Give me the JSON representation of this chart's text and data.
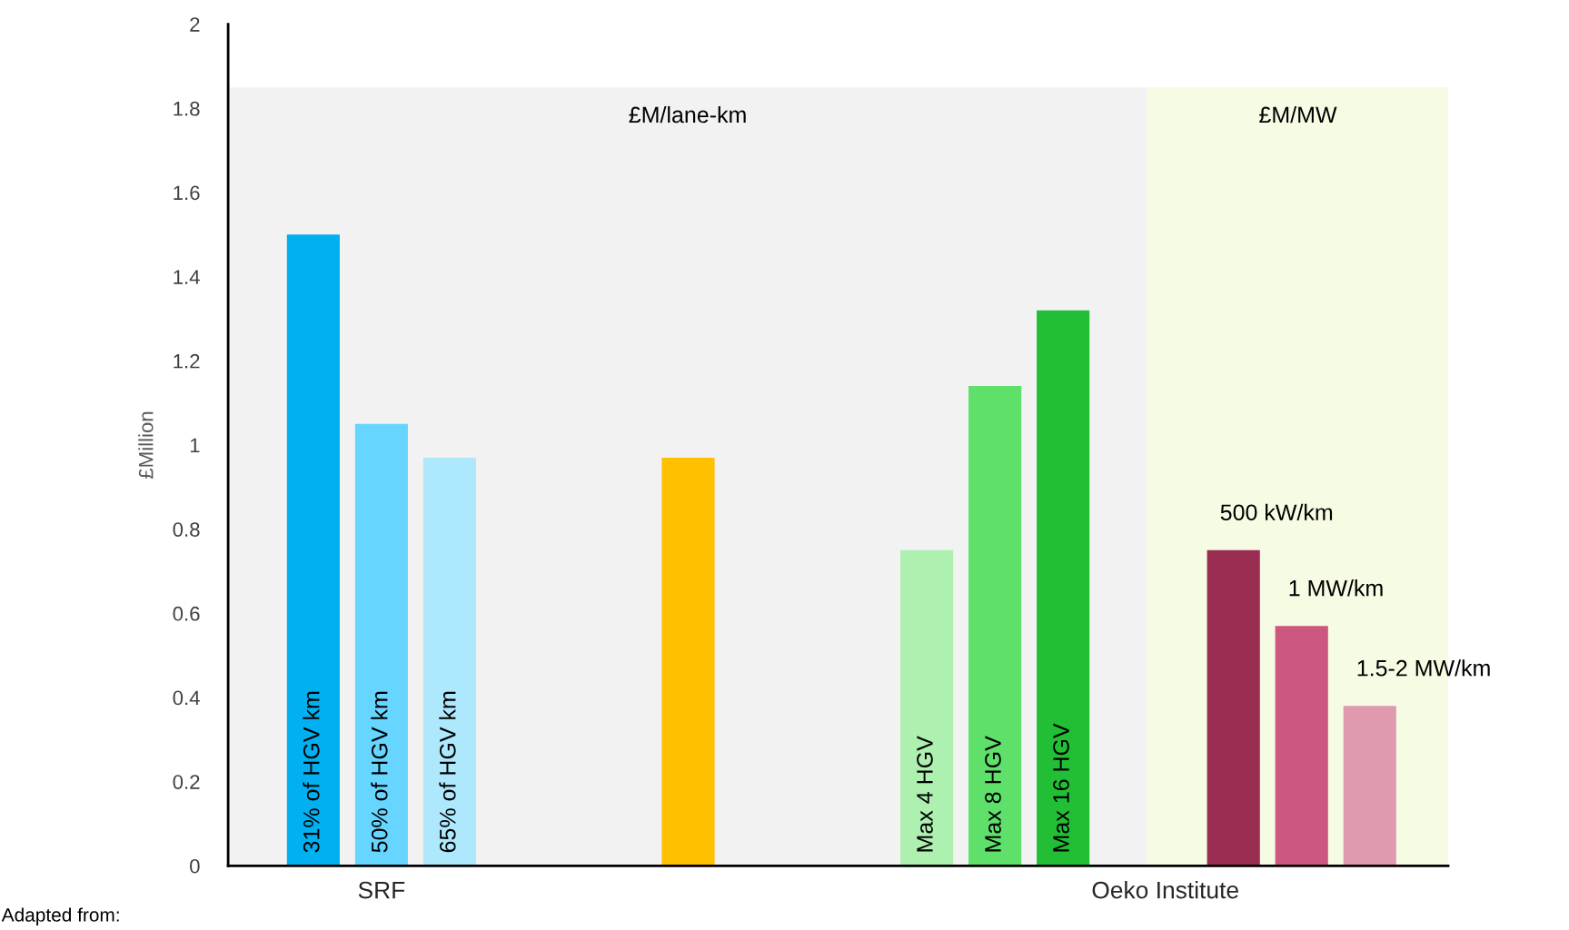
{
  "chart_data": {
    "type": "bar",
    "ylabel": "£Million",
    "categories": [
      null,
      null,
      "SRF",
      null,
      null,
      null,
      null,
      null,
      null,
      null,
      null,
      null,
      null,
      null,
      null,
      null,
      null,
      null,
      null,
      null,
      null,
      null,
      null,
      null,
      null,
      "Oeko Institute",
      null,
      null,
      null,
      null,
      null,
      null
    ],
    "series": [
      {
        "name": "31% of HGV km",
        "color": "#00b0f0",
        "values": [
          1.5,
          null,
          null,
          null,
          null,
          null,
          null,
          null,
          null,
          null,
          null,
          null,
          null,
          null,
          null,
          null,
          null,
          null,
          null,
          null,
          null,
          null,
          null,
          null,
          null,
          null,
          null,
          null,
          null,
          null,
          null,
          null
        ]
      },
      {
        "name": "50% of HGV km",
        "color": "#66d5ff",
        "values": [
          null,
          null,
          1.05,
          null,
          null,
          null,
          null,
          null,
          null,
          null,
          null,
          null,
          null,
          null,
          null,
          null,
          null,
          null,
          null,
          null,
          null,
          null,
          null,
          null,
          null,
          null,
          null,
          null,
          null,
          null,
          null,
          null
        ]
      },
      {
        "name": "65% of HGV km",
        "color": "#ade8fc",
        "values": [
          null,
          null,
          null,
          null,
          0.97,
          null,
          null,
          null,
          null,
          null,
          null,
          null,
          null,
          null,
          null,
          null,
          null,
          null,
          null,
          null,
          null,
          null,
          null,
          null,
          null,
          null,
          null,
          null,
          null,
          null,
          null,
          null
        ]
      },
      {
        "color": "#ffc000",
        "values": [
          null,
          null,
          null,
          null,
          null,
          null,
          null,
          null,
          null,
          null,
          null,
          0.97,
          null,
          null,
          null,
          null,
          null,
          null,
          null,
          null,
          null,
          null,
          null,
          null,
          null,
          null,
          null,
          null,
          null,
          null,
          null,
          null
        ]
      },
      {
        "name": "Max 4 HGV",
        "color": "#aef0b0",
        "values": [
          null,
          null,
          null,
          null,
          null,
          null,
          null,
          null,
          null,
          null,
          null,
          null,
          null,
          null,
          null,
          null,
          null,
          null,
          0.75,
          null,
          null,
          null,
          null,
          null,
          null,
          null,
          null,
          null,
          null,
          null,
          null,
          null
        ]
      },
      {
        "name": "Max 8 HGV",
        "color": "#5ee06a",
        "values": [
          null,
          null,
          null,
          null,
          null,
          null,
          null,
          null,
          null,
          null,
          null,
          null,
          null,
          null,
          null,
          null,
          null,
          null,
          null,
          null,
          1.14,
          null,
          null,
          null,
          null,
          null,
          null,
          null,
          null,
          null,
          null,
          null
        ]
      },
      {
        "name": "Max 16 HGV",
        "color": "#22bf36",
        "values": [
          null,
          null,
          null,
          null,
          null,
          null,
          null,
          null,
          null,
          null,
          null,
          null,
          null,
          null,
          null,
          null,
          null,
          null,
          null,
          null,
          null,
          null,
          1.32,
          null,
          null,
          null,
          null,
          null,
          null,
          null,
          null,
          null
        ]
      },
      {
        "name": "500 kW/km",
        "color": "#9b2d52",
        "values": [
          null,
          null,
          null,
          null,
          null,
          null,
          null,
          null,
          null,
          null,
          null,
          null,
          null,
          null,
          null,
          null,
          null,
          null,
          null,
          null,
          null,
          null,
          null,
          null,
          null,
          null,
          null,
          0.75,
          null,
          null,
          null,
          null
        ]
      },
      {
        "name": "1 MW/km",
        "color": "#cc5780",
        "values": [
          null,
          null,
          null,
          null,
          null,
          null,
          null,
          null,
          null,
          null,
          null,
          null,
          null,
          null,
          null,
          null,
          null,
          null,
          null,
          null,
          null,
          null,
          null,
          null,
          null,
          null,
          null,
          null,
          null,
          0.57,
          null,
          null
        ]
      },
      {
        "name": "1.5-2 MW/km",
        "color": "#e09ab0",
        "values": [
          null,
          null,
          null,
          null,
          null,
          null,
          null,
          null,
          null,
          null,
          null,
          null,
          null,
          null,
          null,
          null,
          null,
          null,
          null,
          null,
          null,
          null,
          null,
          null,
          null,
          null,
          null,
          null,
          null,
          null,
          null,
          0.38
        ]
      }
    ],
    "ylim": [
      0,
      2
    ],
    "yticks": [
      0,
      0.2,
      0.4,
      0.6,
      0.8,
      1,
      1.2,
      1.4,
      1.6,
      1.8,
      2
    ],
    "grid": false,
    "annotations": [
      "£M/lane-km",
      "£M/MW",
      "Adapted from:"
    ]
  }
}
